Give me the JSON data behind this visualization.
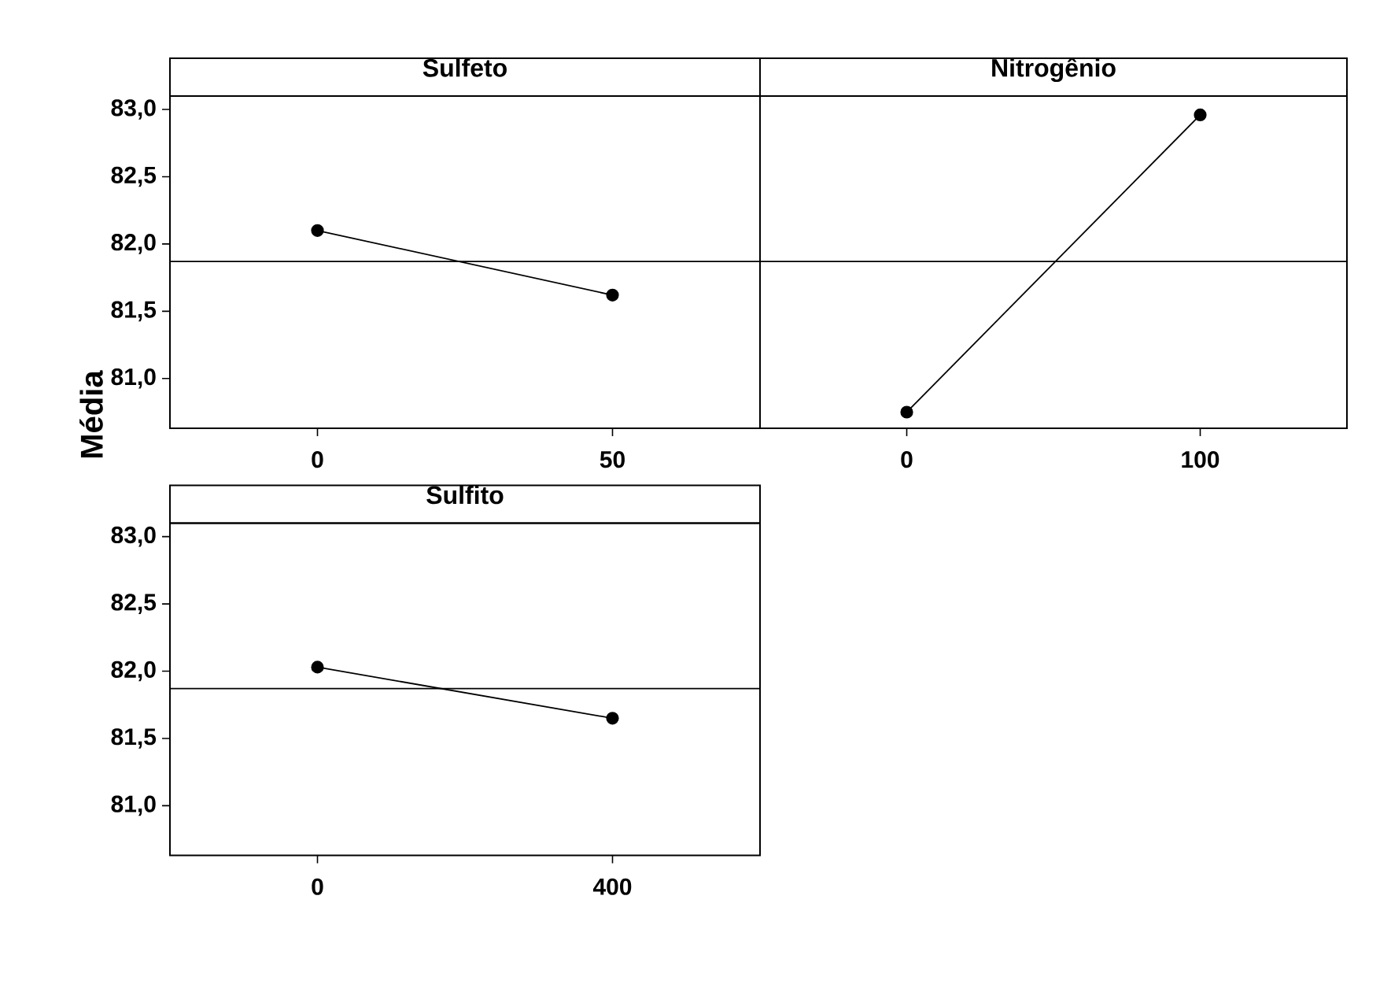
{
  "chart_data": [
    {
      "type": "line",
      "title": "Sulfeto",
      "ylabel": "Média",
      "x": [
        0,
        50
      ],
      "values": [
        82.1,
        81.62
      ],
      "color": "#000000",
      "marker": "circle",
      "xlim": [
        -25,
        75
      ],
      "xticks": [
        0,
        50
      ],
      "ylim": [
        80.63,
        83.1
      ],
      "yticks": [
        {
          "value": 81,
          "label": "81,0"
        },
        {
          "value": 81.5,
          "label": "81,5"
        },
        {
          "value": 82,
          "label": "82,0"
        },
        {
          "value": 82.5,
          "label": "82,5"
        },
        {
          "value": 83,
          "label": "83,0"
        }
      ],
      "ref_lines": [
        {
          "axis": "y",
          "value": 81.87,
          "color": "#000000"
        }
      ]
    },
    {
      "type": "line",
      "title": "Nitrogênio",
      "x": [
        0,
        100
      ],
      "values": [
        80.75,
        82.96
      ],
      "color": "#000000",
      "marker": "circle",
      "xlim": [
        -50,
        150
      ],
      "xticks": [
        0,
        100
      ],
      "ylim": [
        80.63,
        83.1
      ],
      "tick_labels": "x",
      "ref_lines": [
        {
          "axis": "y",
          "value": 81.87,
          "color": "#000000"
        }
      ]
    },
    {
      "type": "line",
      "title": "Sulfito",
      "x": [
        0,
        400
      ],
      "values": [
        82.03,
        81.65
      ],
      "color": "#000000",
      "marker": "circle",
      "xlim": [
        -200,
        600
      ],
      "xticks": [
        0,
        400
      ],
      "ylim": [
        80.63,
        83.1
      ],
      "yticks": [
        {
          "value": 81,
          "label": "81,0"
        },
        {
          "value": 81.5,
          "label": "81,5"
        },
        {
          "value": 82,
          "label": "82,0"
        },
        {
          "value": 82.5,
          "label": "82,5"
        },
        {
          "value": 83,
          "label": "83,0"
        }
      ],
      "ref_lines": [
        {
          "axis": "y",
          "value": 81.87,
          "color": "#000000"
        }
      ]
    }
  ]
}
